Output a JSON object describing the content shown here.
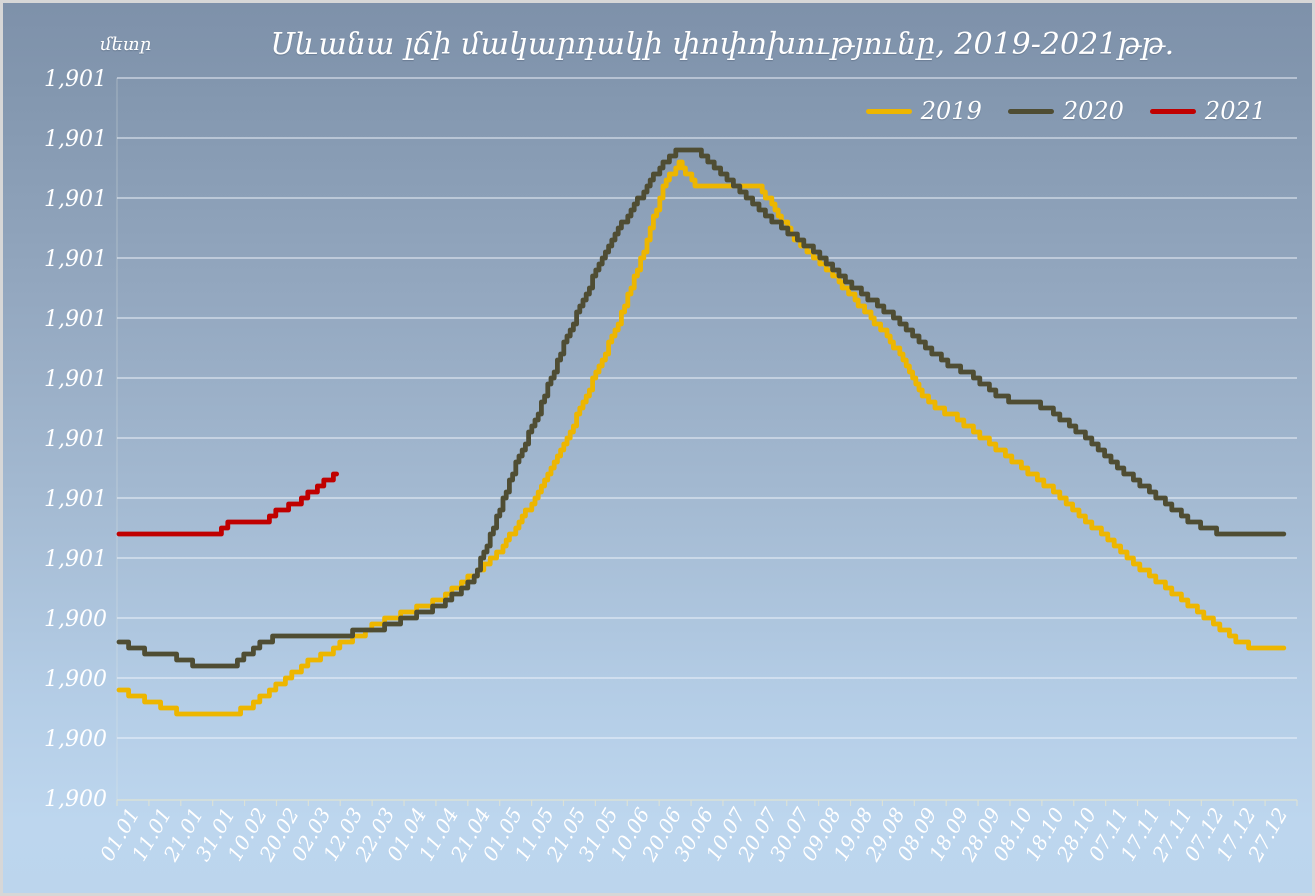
{
  "window": {
    "border_color": "#d7d7d7",
    "background_top": "#7e91aa",
    "background_bottom": "#bdd6ee"
  },
  "chart_data": {
    "type": "line",
    "title": "Սևանա լճի մակարդակի փոփոխությունը, 2019-2021թթ.",
    "y_unit_label": "մետր",
    "grid": true,
    "legend_position": "top-right",
    "y_axis": {
      "min": 1900.1,
      "max": 1901.3,
      "tick_step": 0.1,
      "tick_labels_bottom_to_top": [
        "1,900",
        "1,900",
        "1,900",
        "1,900",
        "1,901",
        "1,901",
        "1,901",
        "1,901",
        "1,901",
        "1,901",
        "1,901",
        "1,901",
        "1,901"
      ]
    },
    "x_axis": {
      "tick_interval_days": 10,
      "tick_labels": [
        "01.01",
        "11.01",
        "21.01",
        "31.01",
        "10.02",
        "20.02",
        "02.03",
        "12.03",
        "22.03",
        "01.04",
        "11.04",
        "21.04",
        "01.05",
        "11.05",
        "21.05",
        "31.05",
        "10.06",
        "20.06",
        "30.06",
        "10.07",
        "20.07",
        "30.07",
        "09.08",
        "19.08",
        "29.08",
        "08.09",
        "18.09",
        "28.09",
        "08.10",
        "18.10",
        "28.10",
        "07.11",
        "17.11",
        "27.11",
        "07.12",
        "17.12",
        "27.12"
      ]
    },
    "series": [
      {
        "name": "2019",
        "color": "#edb600",
        "sample_interval_days": 5,
        "start_day": 0,
        "end_day": 364,
        "values": [
          1900.28,
          1900.27,
          1900.26,
          1900.25,
          1900.24,
          1900.24,
          1900.24,
          1900.24,
          1900.25,
          1900.27,
          1900.29,
          1900.31,
          1900.33,
          1900.34,
          1900.36,
          1900.37,
          1900.39,
          1900.4,
          1900.41,
          1900.42,
          1900.43,
          1900.45,
          1900.47,
          1900.49,
          1900.52,
          1900.56,
          1900.6,
          1900.65,
          1900.7,
          1900.76,
          1900.82,
          1900.88,
          1900.95,
          1901.03,
          1901.12,
          1901.16,
          1901.12,
          1901.12,
          1901.12,
          1901.12,
          1901.12,
          1901.08,
          1901.04,
          1901.01,
          1900.99,
          1900.96,
          1900.93,
          1900.9,
          1900.87,
          1900.83,
          1900.78,
          1900.75,
          1900.74,
          1900.72,
          1900.7,
          1900.68,
          1900.66,
          1900.64,
          1900.62,
          1900.6,
          1900.57,
          1900.55,
          1900.53,
          1900.5,
          1900.48,
          1900.46,
          1900.44,
          1900.42,
          1900.4,
          1900.38,
          1900.36,
          1900.35,
          1900.35
        ]
      },
      {
        "name": "2020",
        "color": "#4f4d33",
        "sample_interval_days": 5,
        "start_day": 0,
        "end_day": 364,
        "values": [
          1900.36,
          1900.35,
          1900.34,
          1900.34,
          1900.33,
          1900.32,
          1900.32,
          1900.32,
          1900.34,
          1900.36,
          1900.37,
          1900.37,
          1900.37,
          1900.37,
          1900.37,
          1900.38,
          1900.38,
          1900.39,
          1900.4,
          1900.41,
          1900.42,
          1900.44,
          1900.46,
          1900.52,
          1900.6,
          1900.67,
          1900.73,
          1900.8,
          1900.87,
          1900.93,
          1900.99,
          1901.04,
          1901.08,
          1901.12,
          1901.16,
          1901.18,
          1901.18,
          1901.16,
          1901.13,
          1901.11,
          1901.08,
          1901.06,
          1901.04,
          1901.02,
          1901.0,
          1900.97,
          1900.95,
          1900.93,
          1900.91,
          1900.89,
          1900.86,
          1900.84,
          1900.82,
          1900.81,
          1900.79,
          1900.77,
          1900.76,
          1900.76,
          1900.75,
          1900.73,
          1900.71,
          1900.69,
          1900.66,
          1900.64,
          1900.62,
          1900.6,
          1900.58,
          1900.56,
          1900.55,
          1900.54,
          1900.54,
          1900.54,
          1900.54
        ]
      },
      {
        "name": "2021",
        "color": "#c00000",
        "days": [
          0,
          5,
          10,
          15,
          20,
          25,
          30,
          35,
          40,
          45,
          50,
          55,
          60,
          65,
          68
        ],
        "end_day": 68,
        "values": [
          1900.54,
          1900.54,
          1900.54,
          1900.54,
          1900.54,
          1900.54,
          1900.54,
          1900.56,
          1900.56,
          1900.56,
          1900.58,
          1900.59,
          1900.61,
          1900.63,
          1900.64
        ]
      }
    ]
  }
}
